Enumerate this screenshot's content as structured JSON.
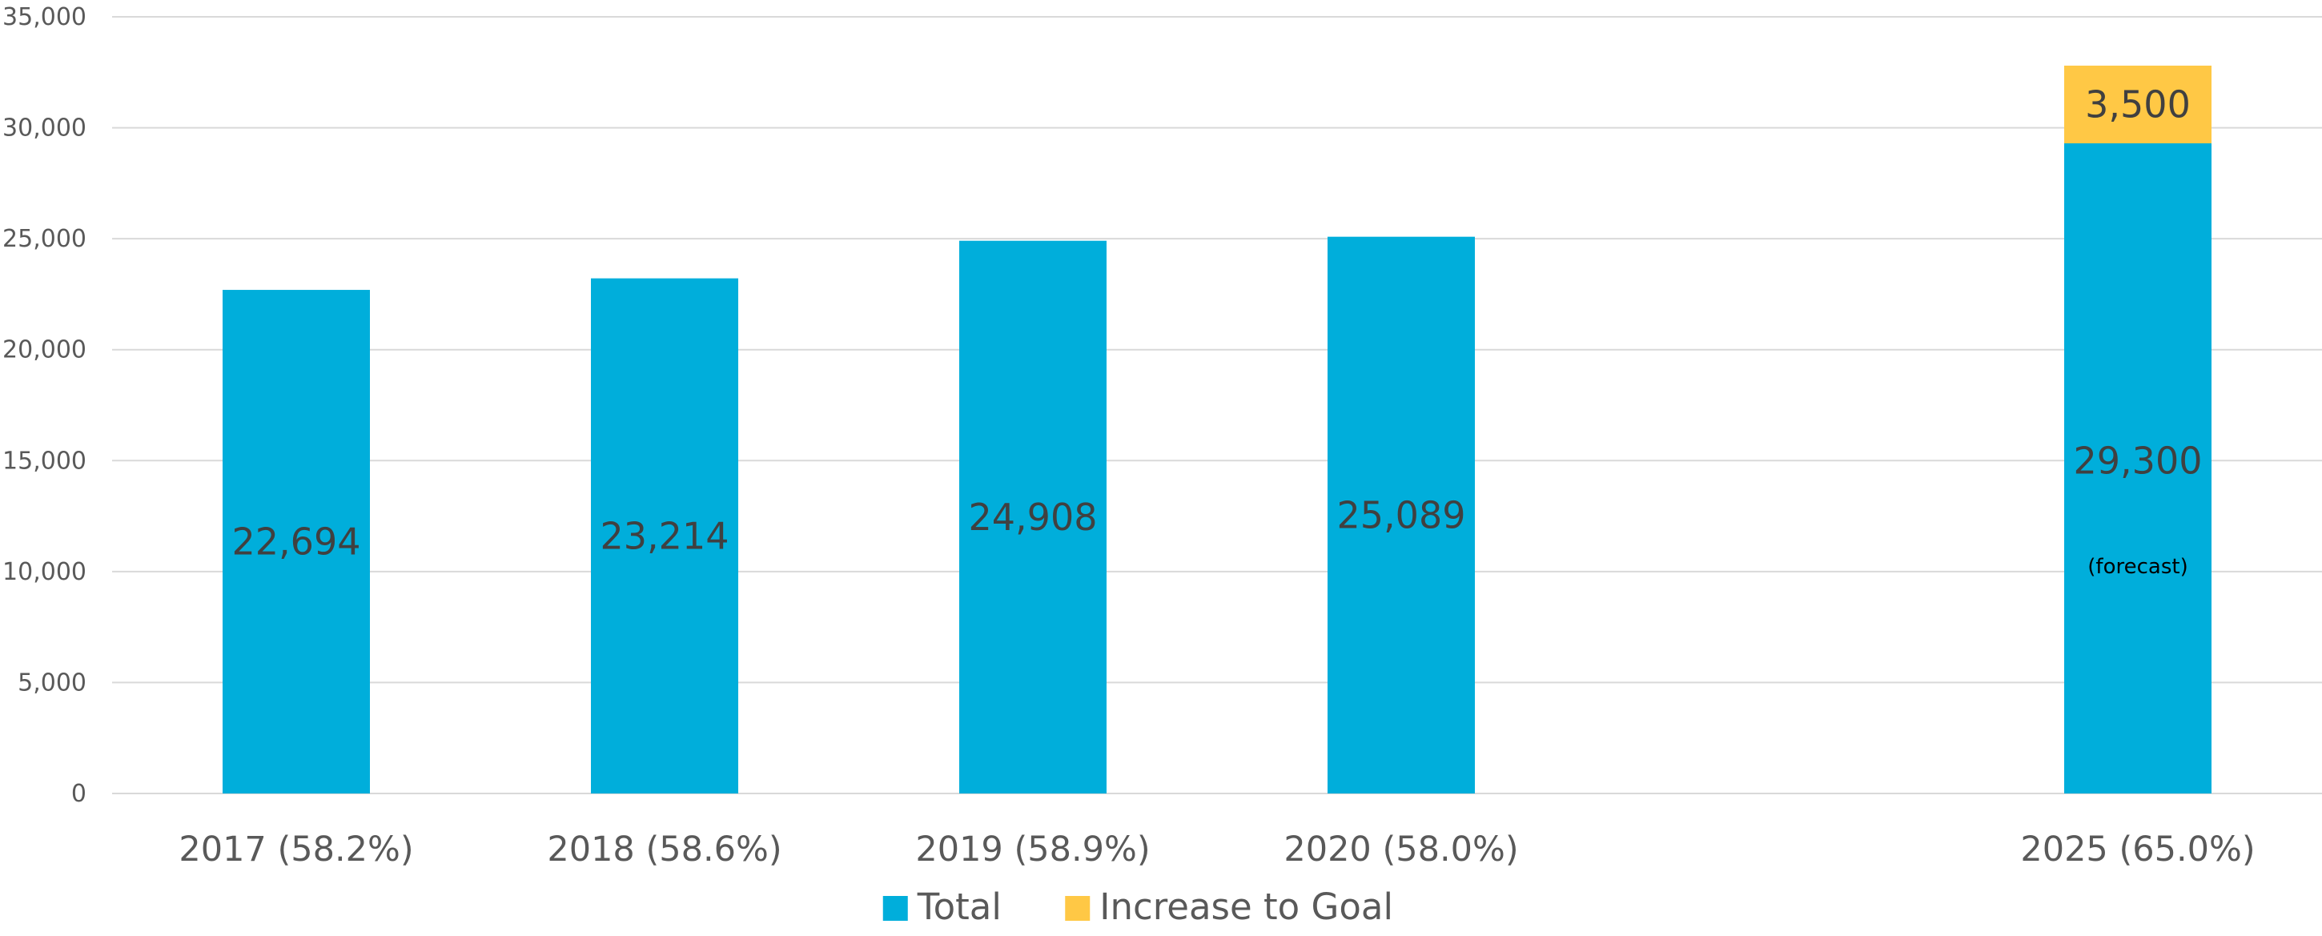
{
  "chart_data": {
    "type": "bar",
    "stacked": true,
    "title": "",
    "xlabel": "",
    "ylabel": "",
    "ylim": [
      0,
      35000
    ],
    "y_ticks": [
      0,
      5000,
      10000,
      15000,
      20000,
      25000,
      30000,
      35000
    ],
    "y_tick_labels": [
      "0",
      "5,000",
      "10,000",
      "15,000",
      "20,000",
      "25,000",
      "30,000",
      "35,000"
    ],
    "grid": true,
    "legend_position": "bottom",
    "categories": [
      "2017 (58.2%)",
      "2018 (58.6%)",
      "2019 (58.9%)",
      "2020 (58.0%)",
      "",
      "2025 (65.0%)"
    ],
    "series": [
      {
        "name": "Total",
        "color": "#00AEDB",
        "values": [
          22694,
          23214,
          24908,
          25089,
          null,
          29300
        ],
        "labels": [
          "22,694",
          "23,214",
          "24,908",
          "25,089",
          "",
          "29,300"
        ]
      },
      {
        "name": "Increase to Goal",
        "color": "#FFC845",
        "values": [
          null,
          null,
          null,
          null,
          null,
          3500
        ],
        "labels": [
          "",
          "",
          "",
          "",
          "",
          "3,500"
        ]
      }
    ],
    "annotations": [
      {
        "category_index": 5,
        "text": "(forecast)"
      }
    ]
  }
}
